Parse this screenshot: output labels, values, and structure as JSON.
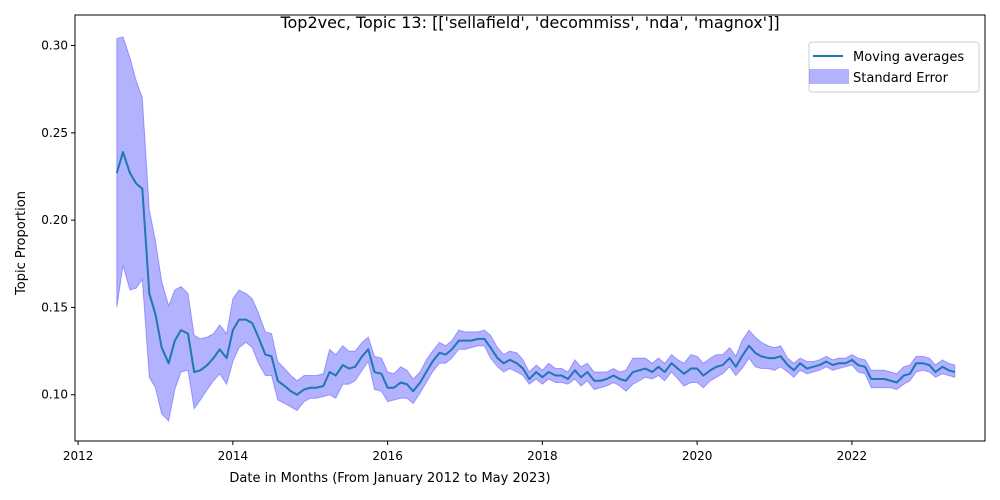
{
  "chart_data": {
    "type": "line",
    "title": "Top2vec, Topic 13: [['sellafield', 'decommiss', 'nda', 'magnox']]",
    "xlabel": "Date in Months (From January 2012 to May 2023)",
    "ylabel": "Topic Proportion",
    "xlim": [
      2011.96,
      2023.72
    ],
    "ylim": [
      0.0735,
      0.3175
    ],
    "x_ticks": [
      2012,
      2014,
      2016,
      2018,
      2020,
      2022
    ],
    "x_tick_labels": [
      "2012",
      "2014",
      "2016",
      "2018",
      "2020",
      "2022"
    ],
    "y_ticks": [
      0.1,
      0.15,
      0.2,
      0.25,
      0.3
    ],
    "y_tick_labels": [
      "0.10",
      "0.15",
      "0.20",
      "0.25",
      "0.30"
    ],
    "grid": false,
    "legend_position": "top-right",
    "legend": {
      "line_label": "Moving averages",
      "band_label": "Standard Error"
    },
    "colors": {
      "line": "#1f77b4",
      "band": "#0000ff",
      "band_opacity": 0.3
    },
    "x": [
      2012.5,
      2012.58,
      2012.67,
      2012.75,
      2012.83,
      2012.92,
      2013.0,
      2013.08,
      2013.17,
      2013.25,
      2013.33,
      2013.42,
      2013.5,
      2013.58,
      2013.67,
      2013.75,
      2013.83,
      2013.92,
      2014.0,
      2014.08,
      2014.17,
      2014.25,
      2014.33,
      2014.42,
      2014.5,
      2014.58,
      2014.67,
      2014.75,
      2014.83,
      2014.92,
      2015.0,
      2015.08,
      2015.17,
      2015.25,
      2015.33,
      2015.42,
      2015.5,
      2015.58,
      2015.67,
      2015.75,
      2015.83,
      2015.92,
      2016.0,
      2016.08,
      2016.17,
      2016.25,
      2016.33,
      2016.42,
      2016.5,
      2016.58,
      2016.67,
      2016.75,
      2016.83,
      2016.92,
      2017.0,
      2017.08,
      2017.17,
      2017.25,
      2017.33,
      2017.42,
      2017.5,
      2017.58,
      2017.67,
      2017.75,
      2017.83,
      2017.92,
      2018.0,
      2018.08,
      2018.17,
      2018.25,
      2018.33,
      2018.42,
      2018.5,
      2018.58,
      2018.67,
      2018.75,
      2018.83,
      2018.92,
      2019.0,
      2019.08,
      2019.17,
      2019.25,
      2019.33,
      2019.42,
      2019.5,
      2019.58,
      2019.67,
      2019.75,
      2019.83,
      2019.92,
      2020.0,
      2020.08,
      2020.17,
      2020.25,
      2020.33,
      2020.42,
      2020.5,
      2020.58,
      2020.67,
      2020.75,
      2020.83,
      2020.92,
      2021.0,
      2021.08,
      2021.17,
      2021.25,
      2021.33,
      2021.42,
      2021.5,
      2021.58,
      2021.67,
      2021.75,
      2021.83,
      2021.92,
      2022.0,
      2022.08,
      2022.17,
      2022.25,
      2022.33,
      2022.42,
      2022.5,
      2022.58,
      2022.67,
      2022.75,
      2022.83,
      2022.92,
      2023.0,
      2023.08,
      2023.17,
      2023.25,
      2023.33
    ],
    "series": [
      {
        "name": "Moving averages",
        "values": [
          0.227,
          0.239,
          0.227,
          0.221,
          0.218,
          0.158,
          0.146,
          0.127,
          0.118,
          0.131,
          0.137,
          0.135,
          0.113,
          0.114,
          0.117,
          0.121,
          0.126,
          0.121,
          0.137,
          0.143,
          0.143,
          0.141,
          0.133,
          0.123,
          0.122,
          0.108,
          0.105,
          0.102,
          0.1,
          0.103,
          0.104,
          0.104,
          0.105,
          0.113,
          0.111,
          0.117,
          0.115,
          0.116,
          0.122,
          0.126,
          0.113,
          0.112,
          0.104,
          0.104,
          0.107,
          0.106,
          0.102,
          0.107,
          0.113,
          0.119,
          0.124,
          0.123,
          0.126,
          0.131,
          0.131,
          0.131,
          0.132,
          0.132,
          0.127,
          0.121,
          0.118,
          0.12,
          0.118,
          0.115,
          0.109,
          0.113,
          0.11,
          0.113,
          0.111,
          0.111,
          0.109,
          0.114,
          0.11,
          0.113,
          0.108,
          0.108,
          0.109,
          0.111,
          0.109,
          0.108,
          0.113,
          0.114,
          0.115,
          0.113,
          0.116,
          0.113,
          0.118,
          0.115,
          0.112,
          0.115,
          0.115,
          0.111,
          0.114,
          0.116,
          0.117,
          0.121,
          0.116,
          0.122,
          0.128,
          0.124,
          0.122,
          0.121,
          0.121,
          0.122,
          0.117,
          0.114,
          0.118,
          0.115,
          0.116,
          0.117,
          0.119,
          0.117,
          0.118,
          0.118,
          0.12,
          0.117,
          0.116,
          0.109,
          0.109,
          0.109,
          0.108,
          0.107,
          0.111,
          0.112,
          0.118,
          0.118,
          0.117,
          0.113,
          0.116,
          0.114,
          0.113
        ]
      }
    ],
    "band": {
      "lower": [
        0.15,
        0.174,
        0.16,
        0.161,
        0.166,
        0.11,
        0.104,
        0.089,
        0.085,
        0.103,
        0.113,
        0.114,
        0.092,
        0.097,
        0.103,
        0.108,
        0.112,
        0.106,
        0.119,
        0.127,
        0.13,
        0.127,
        0.118,
        0.111,
        0.111,
        0.097,
        0.095,
        0.093,
        0.091,
        0.096,
        0.098,
        0.098,
        0.099,
        0.1,
        0.098,
        0.106,
        0.106,
        0.108,
        0.114,
        0.119,
        0.103,
        0.102,
        0.096,
        0.097,
        0.098,
        0.098,
        0.095,
        0.101,
        0.107,
        0.113,
        0.118,
        0.118,
        0.121,
        0.126,
        0.126,
        0.127,
        0.128,
        0.128,
        0.121,
        0.116,
        0.113,
        0.115,
        0.113,
        0.111,
        0.106,
        0.109,
        0.106,
        0.109,
        0.107,
        0.107,
        0.106,
        0.109,
        0.105,
        0.108,
        0.103,
        0.104,
        0.105,
        0.107,
        0.105,
        0.102,
        0.106,
        0.108,
        0.11,
        0.109,
        0.111,
        0.108,
        0.113,
        0.109,
        0.105,
        0.107,
        0.107,
        0.104,
        0.108,
        0.11,
        0.112,
        0.116,
        0.111,
        0.115,
        0.121,
        0.116,
        0.115,
        0.115,
        0.114,
        0.116,
        0.113,
        0.11,
        0.114,
        0.112,
        0.113,
        0.114,
        0.116,
        0.114,
        0.115,
        0.116,
        0.117,
        0.113,
        0.112,
        0.104,
        0.104,
        0.104,
        0.104,
        0.103,
        0.106,
        0.108,
        0.113,
        0.114,
        0.113,
        0.11,
        0.112,
        0.111,
        0.11
      ],
      "upper": [
        0.304,
        0.305,
        0.293,
        0.28,
        0.27,
        0.206,
        0.188,
        0.165,
        0.151,
        0.16,
        0.162,
        0.158,
        0.134,
        0.132,
        0.133,
        0.135,
        0.14,
        0.135,
        0.155,
        0.16,
        0.158,
        0.155,
        0.147,
        0.136,
        0.135,
        0.119,
        0.115,
        0.111,
        0.108,
        0.111,
        0.111,
        0.111,
        0.112,
        0.126,
        0.123,
        0.128,
        0.125,
        0.125,
        0.13,
        0.133,
        0.122,
        0.121,
        0.113,
        0.112,
        0.116,
        0.114,
        0.109,
        0.113,
        0.12,
        0.125,
        0.13,
        0.128,
        0.131,
        0.137,
        0.136,
        0.136,
        0.136,
        0.137,
        0.134,
        0.127,
        0.123,
        0.125,
        0.124,
        0.12,
        0.113,
        0.117,
        0.114,
        0.118,
        0.115,
        0.115,
        0.113,
        0.12,
        0.116,
        0.118,
        0.113,
        0.113,
        0.113,
        0.115,
        0.113,
        0.114,
        0.121,
        0.121,
        0.121,
        0.118,
        0.121,
        0.118,
        0.123,
        0.12,
        0.118,
        0.123,
        0.122,
        0.118,
        0.121,
        0.123,
        0.123,
        0.127,
        0.122,
        0.131,
        0.137,
        0.133,
        0.13,
        0.128,
        0.127,
        0.128,
        0.121,
        0.118,
        0.121,
        0.119,
        0.119,
        0.12,
        0.122,
        0.12,
        0.121,
        0.121,
        0.123,
        0.121,
        0.12,
        0.114,
        0.114,
        0.114,
        0.113,
        0.112,
        0.116,
        0.117,
        0.122,
        0.122,
        0.121,
        0.117,
        0.12,
        0.118,
        0.117
      ]
    }
  }
}
